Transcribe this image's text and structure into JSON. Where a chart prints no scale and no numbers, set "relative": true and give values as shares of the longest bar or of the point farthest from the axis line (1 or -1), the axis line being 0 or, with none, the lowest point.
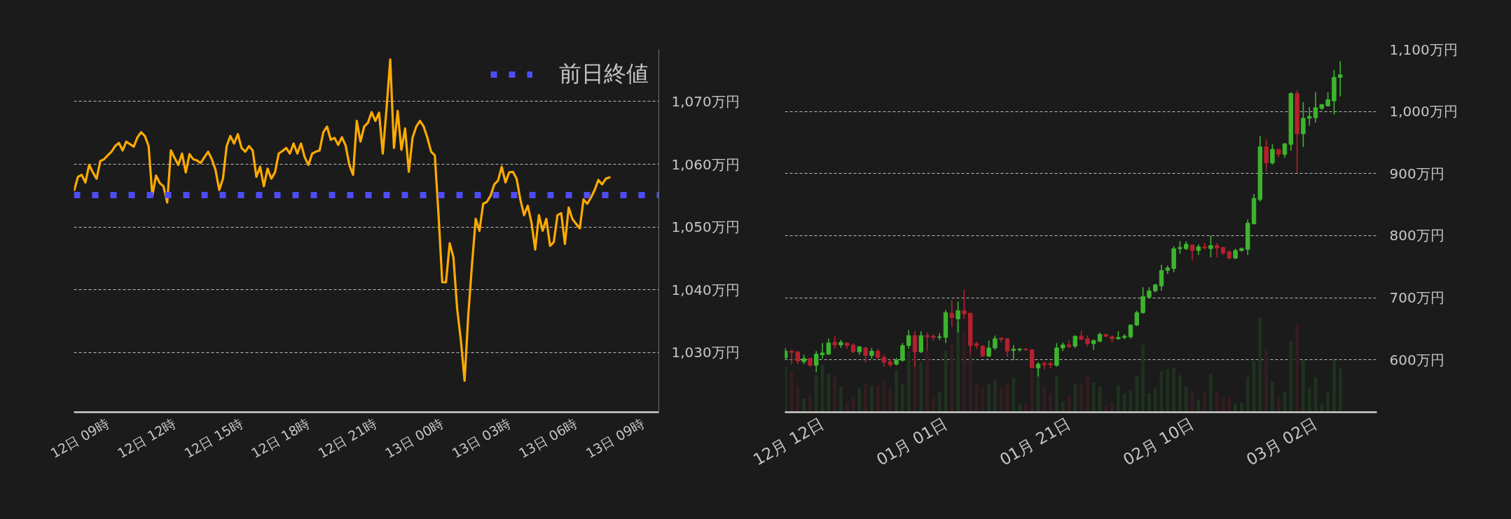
{
  "chart_data": [
    {
      "type": "line",
      "categories": [
        null,
        null,
        null,
        null,
        null,
        null,
        null,
        null,
        null,
        "12日 09時",
        null,
        null,
        null,
        null,
        null,
        null,
        null,
        null,
        null,
        null,
        null,
        null,
        null,
        null,
        null,
        null,
        null,
        "12日 12時",
        null,
        null,
        null,
        null,
        null,
        null,
        null,
        null,
        null,
        null,
        null,
        null,
        null,
        null,
        null,
        null,
        null,
        "12日 15時",
        null,
        null,
        null,
        null,
        null,
        null,
        null,
        null,
        null,
        null,
        null,
        null,
        null,
        null,
        null,
        null,
        null,
        "12日 18時",
        null,
        null,
        null,
        null,
        null,
        null,
        null,
        null,
        null,
        null,
        null,
        null,
        null,
        null,
        null,
        null,
        null,
        "12日 21時",
        null,
        null,
        null,
        null,
        null,
        null,
        null,
        null,
        null,
        null,
        null,
        null,
        null,
        null,
        null,
        null,
        null,
        "13日 00時",
        null,
        null,
        null,
        null,
        null,
        null,
        null,
        null,
        null,
        null,
        null,
        null,
        null,
        null,
        null,
        null,
        null,
        "13日 03時",
        null,
        null,
        null,
        null,
        null,
        null,
        null,
        null,
        null,
        null,
        null,
        null,
        null,
        null,
        null,
        null,
        null,
        "13日 06時",
        null,
        null,
        null,
        null,
        null,
        null,
        null,
        null,
        null,
        null,
        null,
        null,
        null,
        null,
        null,
        null,
        null,
        "13日 09時"
      ],
      "series": [
        {
          "color": "#ffab00",
          "values": [
            1055.9,
            1058.0,
            1058.3,
            1057.1,
            1059.9,
            1058.7,
            1057.7,
            1060.5,
            1060.8,
            1061.4,
            1062.0,
            1062.9,
            1063.4,
            1062.2,
            1063.6,
            1063.2,
            1062.8,
            1064.3,
            1065.1,
            1064.5,
            1062.9,
            1055.0,
            1058.2,
            1057.0,
            1056.5,
            1053.9,
            1062.2,
            1061.0,
            1059.9,
            1061.7,
            1058.7,
            1061.6,
            1060.8,
            1060.6,
            1060.2,
            1061.1,
            1062.0,
            1060.8,
            1059.1,
            1055.9,
            1057.7,
            1062.9,
            1064.5,
            1063.3,
            1064.8,
            1062.6,
            1062.0,
            1062.9,
            1062.2,
            1058.0,
            1059.6,
            1056.5,
            1059.3,
            1057.7,
            1058.7,
            1061.7,
            1062.1,
            1062.6,
            1061.7,
            1063.3,
            1061.7,
            1063.3,
            1061.1,
            1059.9,
            1061.7,
            1062.0,
            1062.2,
            1065.1,
            1066.0,
            1063.9,
            1064.2,
            1063.1,
            1064.3,
            1063.0,
            1059.9,
            1058.3,
            1066.9,
            1063.6,
            1066.0,
            1066.6,
            1068.3,
            1066.9,
            1068.2,
            1061.7,
            1068.8,
            1076.7,
            1062.6,
            1068.5,
            1062.3,
            1065.7,
            1058.8,
            1064.2,
            1066.0,
            1066.9,
            1066.0,
            1064.2,
            1062.0,
            1061.4,
            1051.9,
            1041.2,
            1041.2,
            1047.4,
            1045.2,
            1037.0,
            1032.0,
            1025.5,
            1036.0,
            1044.0,
            1051.3,
            1049.4,
            1053.7,
            1054.0,
            1055.0,
            1056.8,
            1057.4,
            1059.6,
            1057.1,
            1058.7,
            1058.8,
            1057.7,
            1054.4,
            1051.9,
            1053.4,
            1050.7,
            1046.4,
            1051.9,
            1049.4,
            1051.3,
            1047.0,
            1047.6,
            1051.9,
            1052.2,
            1047.3,
            1053.1,
            1051.3,
            1050.5,
            1049.8,
            1054.4,
            1053.7,
            1054.7,
            1055.9,
            1057.5,
            1056.8,
            1057.7,
            1057.9,
            null,
            null,
            null,
            null,
            null,
            null,
            null,
            null,
            null
          ]
        }
      ],
      "ylim": [
        1020.5,
        1078.3
      ],
      "yticks": [
        {
          "value": 1030,
          "label": "1,030万円"
        },
        {
          "value": 1040,
          "label": "1,040万円"
        },
        {
          "value": 1050,
          "label": "1,050万円"
        },
        {
          "value": 1060,
          "label": "1,060万円"
        },
        {
          "value": 1070,
          "label": "1,070万円"
        }
      ],
      "grid": "y",
      "ref_lines": [
        {
          "axis": "y",
          "value": 1055.1,
          "label": "前日終値",
          "color": "#4d4df2",
          "line_style": "dotted"
        }
      ],
      "legend": "top right"
    },
    {
      "type": "candlestick",
      "categories": [
        null,
        null,
        null,
        null,
        null,
        null,
        "12月 12日",
        null,
        null,
        null,
        null,
        null,
        null,
        null,
        null,
        null,
        null,
        null,
        null,
        null,
        null,
        null,
        null,
        null,
        null,
        null,
        "01月 01日",
        null,
        null,
        null,
        null,
        null,
        null,
        null,
        null,
        null,
        null,
        null,
        null,
        null,
        null,
        null,
        null,
        null,
        null,
        null,
        "01月 21日",
        null,
        null,
        null,
        null,
        null,
        null,
        null,
        null,
        null,
        null,
        null,
        null,
        null,
        null,
        null,
        null,
        null,
        null,
        null,
        "02月 10日",
        null,
        null,
        null,
        null,
        null,
        null,
        null,
        null,
        null,
        null,
        null,
        null,
        null,
        null,
        null,
        null,
        null,
        null,
        null,
        "03月 02日",
        null,
        null,
        null,
        null
      ],
      "ohlc": [
        [
          603,
          619,
          601,
          614
        ],
        [
          614,
          616,
          593,
          612
        ],
        [
          613,
          613,
          593,
          598
        ],
        [
          597,
          608,
          593,
          602
        ],
        [
          602,
          603,
          589,
          591
        ],
        [
          591,
          614,
          580,
          609
        ],
        [
          608,
          627,
          602,
          611
        ],
        [
          609,
          634,
          608,
          627
        ],
        [
          628,
          638,
          618,
          624
        ],
        [
          624,
          632,
          619,
          628
        ],
        [
          627,
          628,
          618,
          623
        ],
        [
          624,
          627,
          611,
          613
        ],
        [
          613,
          622,
          608,
          621
        ],
        [
          619,
          621,
          596,
          607
        ],
        [
          607,
          619,
          602,
          614
        ],
        [
          614,
          618,
          601,
          604
        ],
        [
          604,
          608,
          589,
          596
        ],
        [
          597,
          601,
          588,
          592
        ],
        [
          593,
          603,
          591,
          599
        ],
        [
          599,
          627,
          597,
          623
        ],
        [
          623,
          648,
          618,
          639
        ],
        [
          639,
          647,
          589,
          613
        ],
        [
          613,
          646,
          611,
          639
        ],
        [
          639,
          644,
          614,
          637
        ],
        [
          638,
          641,
          631,
          636
        ],
        [
          636,
          643,
          632,
          637
        ],
        [
          636,
          680,
          627,
          676
        ],
        [
          675,
          696,
          653,
          668
        ],
        [
          666,
          694,
          644,
          679
        ],
        [
          679,
          713,
          666,
          674
        ],
        [
          675,
          675,
          609,
          623
        ],
        [
          626,
          629,
          617,
          623
        ],
        [
          622,
          623,
          605,
          606
        ],
        [
          606,
          631,
          604,
          619
        ],
        [
          619,
          639,
          616,
          634
        ],
        [
          635,
          636,
          628,
          633
        ],
        [
          634,
          635,
          605,
          614
        ],
        [
          615,
          624,
          599,
          617
        ],
        [
          616,
          619,
          613,
          617
        ],
        [
          617,
          619,
          615,
          616
        ],
        [
          616,
          617,
          586,
          587
        ],
        [
          587,
          596,
          573,
          593
        ],
        [
          594,
          597,
          584,
          592
        ],
        [
          594,
          597,
          586,
          592
        ],
        [
          591,
          627,
          589,
          619
        ],
        [
          619,
          628,
          614,
          624
        ],
        [
          624,
          631,
          619,
          621
        ],
        [
          622,
          639,
          619,
          638
        ],
        [
          638,
          647,
          632,
          633
        ],
        [
          634,
          639,
          622,
          626
        ],
        [
          626,
          633,
          616,
          631
        ],
        [
          630,
          644,
          628,
          641
        ],
        [
          641,
          642,
          636,
          638
        ],
        [
          637,
          639,
          628,
          634
        ],
        [
          634,
          646,
          632,
          636
        ],
        [
          636,
          641,
          633,
          638
        ],
        [
          637,
          657,
          634,
          656
        ],
        [
          656,
          679,
          654,
          676
        ],
        [
          676,
          717,
          674,
          702
        ],
        [
          701,
          717,
          699,
          711
        ],
        [
          711,
          722,
          709,
          721
        ],
        [
          719,
          753,
          711,
          744
        ],
        [
          744,
          752,
          738,
          748
        ],
        [
          747,
          783,
          741,
          779
        ],
        [
          779,
          791,
          771,
          781
        ],
        [
          779,
          791,
          777,
          786
        ],
        [
          785,
          785,
          760,
          776
        ],
        [
          776,
          786,
          769,
          782
        ],
        [
          782,
          788,
          778,
          780
        ],
        [
          779,
          800,
          765,
          784
        ],
        [
          784,
          788,
          765,
          780
        ],
        [
          781,
          782,
          769,
          772
        ],
        [
          774,
          776,
          762,
          764
        ],
        [
          764,
          779,
          762,
          776
        ],
        [
          776,
          781,
          774,
          779
        ],
        [
          778,
          826,
          769,
          820
        ],
        [
          819,
          867,
          818,
          860
        ],
        [
          858,
          960,
          855,
          943
        ],
        [
          943,
          955,
          904,
          917
        ],
        [
          917,
          947,
          914,
          939
        ],
        [
          939,
          939,
          926,
          931
        ],
        [
          931,
          949,
          925,
          948
        ],
        [
          947,
          1031,
          937,
          1029
        ],
        [
          1029,
          1034,
          901,
          964
        ],
        [
          964,
          1015,
          943,
          989
        ],
        [
          989,
          1007,
          977,
          992
        ],
        [
          990,
          1031,
          982,
          1006
        ],
        [
          1005,
          1012,
          1002,
          1011
        ],
        [
          1009,
          1031,
          1008,
          1019
        ],
        [
          1017,
          1067,
          995,
          1055
        ],
        [
          1055,
          1081,
          1024,
          1059
        ]
      ],
      "colors": [
        "#3db52e",
        "#b4212d",
        "#b4212d",
        "#3db52e",
        "#b4212d",
        "#3db52e",
        "#3db52e",
        "#3db52e",
        "#b4212d",
        "#3db52e",
        "#b4212d",
        "#b4212d",
        "#3db52e",
        "#b4212d",
        "#3db52e",
        "#b4212d",
        "#b4212d",
        "#b4212d",
        "#3db52e",
        "#3db52e",
        "#3db52e",
        "#b4212d",
        "#3db52e",
        "#b4212d",
        "#b4212d",
        "#3db52e",
        "#3db52e",
        "#b4212d",
        "#3db52e",
        "#b4212d",
        "#b4212d",
        "#b4212d",
        "#b4212d",
        "#3db52e",
        "#3db52e",
        "#b4212d",
        "#b4212d",
        "#3db52e",
        "#3db52e",
        "#b4212d",
        "#b4212d",
        "#3db52e",
        "#b4212d",
        "#b4212d",
        "#3db52e",
        "#3db52e",
        "#b4212d",
        "#3db52e",
        "#b4212d",
        "#b4212d",
        "#3db52e",
        "#3db52e",
        "#b4212d",
        "#b4212d",
        "#3db52e",
        "#3db52e",
        "#3db52e",
        "#3db52e",
        "#3db52e",
        "#3db52e",
        "#3db52e",
        "#3db52e",
        "#3db52e",
        "#3db52e",
        "#3db52e",
        "#3db52e",
        "#b4212d",
        "#3db52e",
        "#b4212d",
        "#3db52e",
        "#b4212d",
        "#b4212d",
        "#b4212d",
        "#3db52e",
        "#3db52e",
        "#3db52e",
        "#3db52e",
        "#3db52e",
        "#b4212d",
        "#3db52e",
        "#b4212d",
        "#3db52e",
        "#3db52e",
        "#b4212d",
        "#3db52e",
        "#3db52e",
        "#3db52e",
        "#3db52e",
        "#3db52e",
        "#3db52e",
        "#3db52e"
      ],
      "ylim": [
        515.6,
        1100
      ],
      "yticks": [
        {
          "value": 600,
          "label": "600万円"
        },
        {
          "value": 700,
          "label": "700万円"
        },
        {
          "value": 800,
          "label": "800万円"
        },
        {
          "value": 900,
          "label": "900万円"
        },
        {
          "value": 1000,
          "label": "1,000万円"
        },
        {
          "value": 1100,
          "label": "1,100万円"
        }
      ],
      "grid": "y"
    },
    {
      "type": "bar",
      "relative": true,
      "categories": [
        null,
        null,
        null,
        null,
        null,
        null,
        null,
        null,
        null,
        null,
        null,
        null,
        null,
        null,
        null,
        null,
        null,
        null,
        null,
        null,
        null,
        null,
        null,
        null,
        null,
        null,
        null,
        null,
        null,
        null,
        null,
        null,
        null,
        null,
        null,
        null,
        null,
        null,
        null,
        null,
        null,
        null,
        null,
        null,
        null,
        null,
        null,
        null,
        null,
        null,
        null,
        null,
        null,
        null,
        null,
        null,
        null,
        null,
        null,
        null,
        null,
        null,
        null,
        null,
        null,
        null,
        null,
        null,
        null,
        null,
        null,
        null,
        null,
        null,
        null,
        null,
        null,
        null,
        null,
        null,
        null,
        null,
        null,
        null,
        null,
        null,
        null,
        null,
        null,
        null,
        null
      ],
      "values": [
        0.48,
        0.43,
        0.28,
        0.14,
        0.18,
        0.39,
        0.5,
        0.41,
        0.37,
        0.27,
        0.09,
        0.16,
        0.26,
        0.3,
        0.28,
        0.28,
        0.33,
        0.25,
        0.44,
        0.3,
        0.65,
        0.64,
        0.53,
        0.64,
        0.16,
        0.21,
        0.65,
        0.72,
        0.95,
        0.84,
        0.61,
        0.3,
        0.26,
        0.3,
        0.34,
        0.26,
        0.3,
        0.36,
        0.09,
        0.09,
        0.45,
        0.46,
        0.27,
        0.19,
        0.38,
        0.11,
        0.17,
        0.3,
        0.3,
        0.39,
        0.31,
        0.27,
        0.07,
        0.1,
        0.28,
        0.2,
        0.23,
        0.38,
        0.71,
        0.2,
        0.25,
        0.43,
        0.45,
        0.47,
        0.39,
        0.27,
        0.22,
        0.13,
        0.22,
        0.4,
        0.22,
        0.16,
        0.16,
        0.09,
        0.1,
        0.37,
        0.54,
        1,
        0.66,
        0.32,
        0.17,
        0.22,
        0.75,
        0.92,
        0.55,
        0.25,
        0.37,
        0.09,
        0.22,
        0.55,
        0.46
      ],
      "colors": [
        "#1f311f",
        "#331d20",
        "#331d20",
        "#1f311f",
        "#331d20",
        "#1f311f",
        "#1f311f",
        "#1f311f",
        "#331d20",
        "#1f311f",
        "#331d20",
        "#331d20",
        "#1f311f",
        "#331d20",
        "#1f311f",
        "#331d20",
        "#331d20",
        "#331d20",
        "#1f311f",
        "#1f311f",
        "#1f311f",
        "#331d20",
        "#1f311f",
        "#331d20",
        "#331d20",
        "#1f311f",
        "#1f311f",
        "#331d20",
        "#1f311f",
        "#331d20",
        "#331d20",
        "#331d20",
        "#331d20",
        "#1f311f",
        "#1f311f",
        "#331d20",
        "#331d20",
        "#1f311f",
        "#1f311f",
        "#331d20",
        "#331d20",
        "#1f311f",
        "#331d20",
        "#331d20",
        "#1f311f",
        "#1f311f",
        "#331d20",
        "#1f311f",
        "#331d20",
        "#331d20",
        "#1f311f",
        "#1f311f",
        "#331d20",
        "#331d20",
        "#1f311f",
        "#1f311f",
        "#1f311f",
        "#1f311f",
        "#1f311f",
        "#1f311f",
        "#1f311f",
        "#1f311f",
        "#1f311f",
        "#1f311f",
        "#1f311f",
        "#1f311f",
        "#331d20",
        "#1f311f",
        "#331d20",
        "#1f311f",
        "#331d20",
        "#331d20",
        "#331d20",
        "#1f311f",
        "#1f311f",
        "#1f311f",
        "#1f311f",
        "#1f311f",
        "#331d20",
        "#1f311f",
        "#331d20",
        "#1f311f",
        "#1f311f",
        "#331d20",
        "#1f311f",
        "#1f311f",
        "#1f311f",
        "#1f311f",
        "#1f311f",
        "#1f311f",
        "#1f311f"
      ]
    }
  ]
}
